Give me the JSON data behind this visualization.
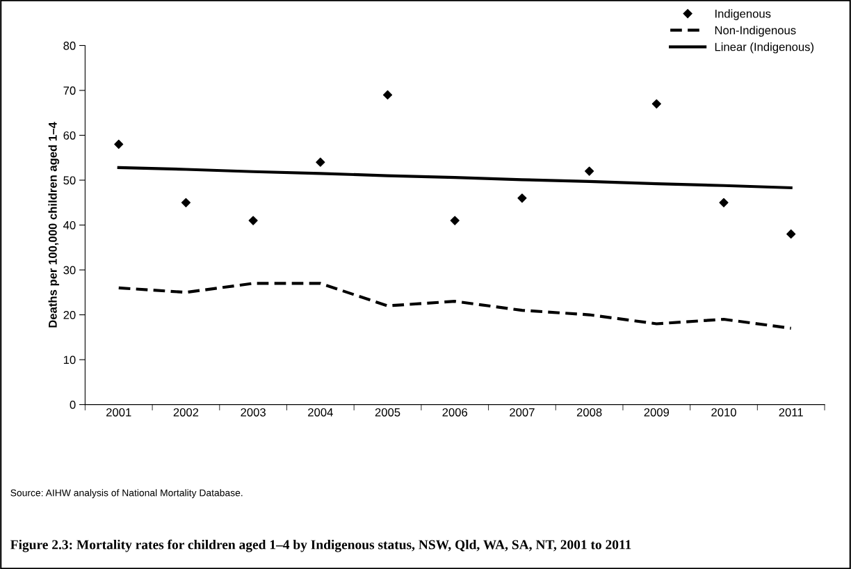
{
  "chart_data": {
    "type": "line",
    "title": "Figure 2.3: Mortality rates for children aged 1–4 by Indigenous status, NSW, Qld, WA, SA, NT, 2001 to 2011",
    "ylabel": "Deaths per 100,000 children aged 1–4",
    "categories": [
      "2001",
      "2002",
      "2003",
      "2004",
      "2005",
      "2006",
      "2007",
      "2008",
      "2009",
      "2010",
      "2011"
    ],
    "series": [
      {
        "name": "Indigenous",
        "type": "scatter",
        "marker": "diamond",
        "color": "#000000",
        "values": [
          58,
          45,
          41,
          54,
          69,
          41,
          46,
          52,
          67,
          45,
          38
        ]
      },
      {
        "name": "Non-Indigenous",
        "line_style": "dashed",
        "color": "#000000",
        "values": [
          26,
          25,
          27,
          27,
          22,
          23,
          21,
          20,
          18,
          19,
          17
        ]
      },
      {
        "name": "Linear (Indigenous)",
        "line_style": "solid",
        "color": "#000000",
        "values": [
          52.8,
          52.4,
          51.9,
          51.5,
          51.0,
          50.6,
          50.1,
          49.7,
          49.2,
          48.8,
          48.3
        ]
      }
    ],
    "ylim": [
      0,
      80
    ],
    "yticks": [
      0,
      10,
      20,
      30,
      40,
      50,
      60,
      70,
      80
    ],
    "grid": false,
    "legend": "top right",
    "annotations": [
      "Source: AIHW analysis of National Mortality Database."
    ]
  }
}
